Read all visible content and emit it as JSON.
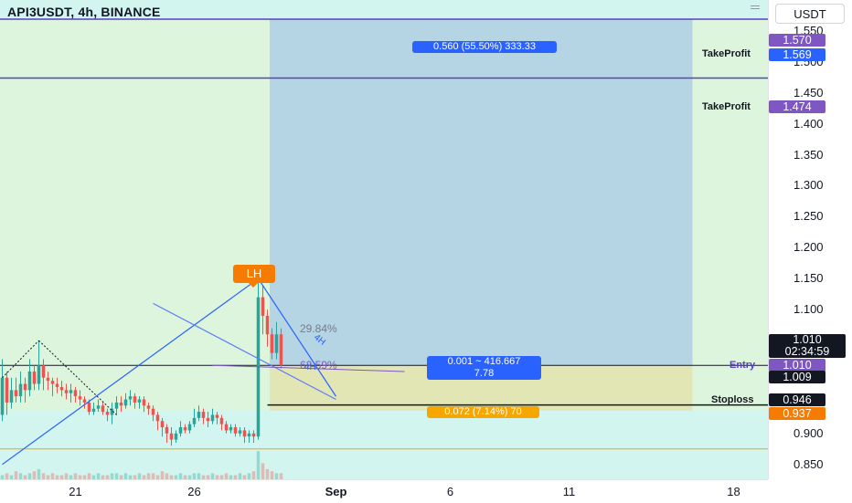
{
  "header": {
    "symbol_title": "API3USDT, 4h, BINANCE",
    "currency": "USDT"
  },
  "colors": {
    "candle_up": "#26a69a",
    "candle_down": "#ef5350",
    "target_zone": "#2962ff",
    "stop_zone": "#f7a600",
    "takeprofit_line": "#5b3fc4",
    "tag_purple": "#7e57c2",
    "tag_blue": "#2962ff",
    "tag_black": "#131722",
    "tag_orange": "#f57c00"
  },
  "labels": {
    "takeprofit_1": "TakeProfit",
    "takeprofit_2": "TakeProfit",
    "entry": "Entry",
    "stoploss": "Stoploss",
    "lh": "LH",
    "retrace_1": "29.84%",
    "retrace_2": "62.59%",
    "sym_4h_1": "4H",
    "sym_4h_2": "4H",
    "target_box": "0.560 (55.50%) 333.33",
    "entry_box_line1": "0.001 ~ 416.667",
    "entry_box_line2": "7.78",
    "stop_box": "0.072 (7.14%) 70"
  },
  "price_tags": {
    "tp1": "1.570",
    "target": "1.569",
    "tp2": "1.474",
    "last_price": "1.010",
    "countdown": "02:34:59",
    "entry": "1.010",
    "entry_low": "1.009",
    "stoploss": "0.946",
    "stop_zone": "0.937"
  },
  "chart_data": {
    "type": "candlestick",
    "symbol": "API3USDT",
    "interval": "4h",
    "exchange": "BINANCE",
    "y_ticks": [
      "1.550",
      "1.500",
      "1.450",
      "1.400",
      "1.350",
      "1.300",
      "1.250",
      "1.200",
      "1.150",
      "1.100",
      "1.050",
      "1.000",
      "0.950",
      "0.900",
      "0.850"
    ],
    "y_tick_values": [
      1.55,
      1.5,
      1.45,
      1.4,
      1.35,
      1.3,
      1.25,
      1.2,
      1.15,
      1.1,
      1.05,
      1.0,
      0.95,
      0.9,
      0.85
    ],
    "ylim": [
      0.826,
      1.6
    ],
    "x_ticks": [
      "21",
      "26",
      "Sep",
      "6",
      "11",
      "18"
    ],
    "x_tick_bold": [
      false,
      false,
      true,
      false,
      false,
      false
    ],
    "x_tick_bars": [
      16,
      42,
      73,
      98,
      124,
      160
    ],
    "bar_count": 168,
    "levels": {
      "take_profit_1": 1.569,
      "take_profit_2": 1.474,
      "entry": 1.01,
      "stop_loss": 0.946,
      "stop_zone_low": 0.937,
      "support_orange": 0.875
    },
    "position": {
      "type": "long",
      "entry": 1.01,
      "target": 1.569,
      "stop": 0.946,
      "target_text": "0.560 (55.50%) 333.33",
      "stop_text": "0.072 (7.14%) 70",
      "start_bar": 59,
      "end_bar": 151
    },
    "candles": [
      [
        0.93,
        0.99,
        1.02,
        0.92
      ],
      [
        0.99,
        0.95,
        1.0,
        0.93
      ],
      [
        0.95,
        0.97,
        0.99,
        0.94
      ],
      [
        0.97,
        0.96,
        0.99,
        0.95
      ],
      [
        0.96,
        0.98,
        1.0,
        0.95
      ],
      [
        0.98,
        0.97,
        0.99,
        0.95
      ],
      [
        0.97,
        1.0,
        1.02,
        0.96
      ],
      [
        1.0,
        0.98,
        1.01,
        0.97
      ],
      [
        0.98,
        1.01,
        1.05,
        0.97
      ],
      [
        1.01,
        0.99,
        1.02,
        0.97
      ],
      [
        0.99,
        0.985,
        1.0,
        0.97
      ],
      [
        0.985,
        0.98,
        0.99,
        0.96
      ],
      [
        0.98,
        0.975,
        0.99,
        0.965
      ],
      [
        0.975,
        0.97,
        0.985,
        0.96
      ],
      [
        0.97,
        0.965,
        0.98,
        0.955
      ],
      [
        0.965,
        0.97,
        0.98,
        0.95
      ],
      [
        0.97,
        0.96,
        0.975,
        0.95
      ],
      [
        0.96,
        0.955,
        0.97,
        0.945
      ],
      [
        0.955,
        0.95,
        0.96,
        0.94
      ],
      [
        0.95,
        0.935,
        0.955,
        0.93
      ],
      [
        0.935,
        0.94,
        0.95,
        0.93
      ],
      [
        0.94,
        0.945,
        0.955,
        0.935
      ],
      [
        0.945,
        0.935,
        0.95,
        0.93
      ],
      [
        0.935,
        0.93,
        0.94,
        0.92
      ],
      [
        0.93,
        0.94,
        0.95,
        0.915
      ],
      [
        0.94,
        0.95,
        0.96,
        0.93
      ],
      [
        0.95,
        0.945,
        0.96,
        0.935
      ],
      [
        0.945,
        0.955,
        0.965,
        0.94
      ],
      [
        0.955,
        0.96,
        0.97,
        0.945
      ],
      [
        0.96,
        0.95,
        0.965,
        0.94
      ],
      [
        0.95,
        0.955,
        0.96,
        0.94
      ],
      [
        0.955,
        0.945,
        0.96,
        0.935
      ],
      [
        0.945,
        0.94,
        0.95,
        0.93
      ],
      [
        0.94,
        0.93,
        0.945,
        0.92
      ],
      [
        0.93,
        0.92,
        0.935,
        0.905
      ],
      [
        0.92,
        0.91,
        0.925,
        0.895
      ],
      [
        0.91,
        0.9,
        0.915,
        0.885
      ],
      [
        0.9,
        0.89,
        0.91,
        0.88
      ],
      [
        0.89,
        0.9,
        0.905,
        0.885
      ],
      [
        0.9,
        0.91,
        0.92,
        0.895
      ],
      [
        0.91,
        0.905,
        0.915,
        0.9
      ],
      [
        0.905,
        0.915,
        0.92,
        0.9
      ],
      [
        0.915,
        0.925,
        0.94,
        0.91
      ],
      [
        0.925,
        0.935,
        0.945,
        0.92
      ],
      [
        0.935,
        0.925,
        0.94,
        0.915
      ],
      [
        0.925,
        0.92,
        0.935,
        0.91
      ],
      [
        0.92,
        0.93,
        0.94,
        0.915
      ],
      [
        0.93,
        0.925,
        0.935,
        0.915
      ],
      [
        0.925,
        0.915,
        0.93,
        0.905
      ],
      [
        0.915,
        0.905,
        0.92,
        0.9
      ],
      [
        0.905,
        0.91,
        0.915,
        0.9
      ],
      [
        0.91,
        0.9,
        0.915,
        0.895
      ],
      [
        0.9,
        0.905,
        0.91,
        0.895
      ],
      [
        0.905,
        0.895,
        0.91,
        0.885
      ],
      [
        0.895,
        0.9,
        0.905,
        0.885
      ],
      [
        0.9,
        0.895,
        0.905,
        0.885
      ],
      [
        0.895,
        1.12,
        1.15,
        0.89
      ],
      [
        1.12,
        1.09,
        1.14,
        1.06
      ],
      [
        1.09,
        1.06,
        1.1,
        1.04
      ],
      [
        1.06,
        1.03,
        1.07,
        1.02
      ],
      [
        1.03,
        1.06,
        1.08,
        1.02
      ],
      [
        1.06,
        1.01,
        1.07,
        1.005
      ]
    ],
    "volume": [
      2,
      3,
      2,
      4,
      3,
      2,
      3,
      4,
      5,
      3,
      2,
      3,
      2,
      2,
      3,
      2,
      3,
      2,
      2,
      3,
      2,
      3,
      2,
      2,
      3,
      3,
      2,
      3,
      2,
      2,
      3,
      2,
      3,
      3,
      2,
      4,
      3,
      2,
      2,
      3,
      2,
      2,
      3,
      3,
      2,
      2,
      3,
      2,
      2,
      3,
      2,
      2,
      3,
      2,
      3,
      4,
      14,
      8,
      5,
      4,
      3,
      3
    ],
    "annotations": [
      "LH",
      "29.84%",
      "62.59%",
      "4H",
      "4H"
    ]
  }
}
